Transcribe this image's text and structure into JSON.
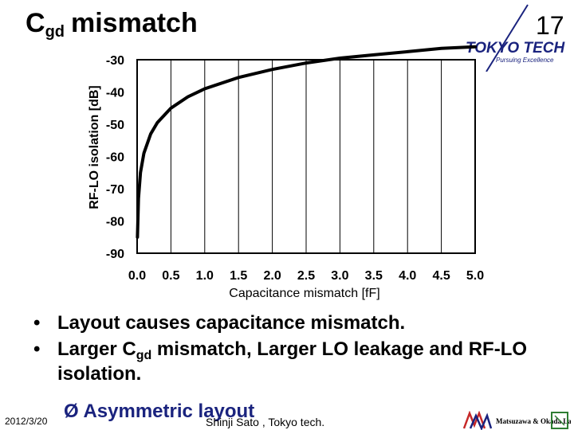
{
  "slide": {
    "title_main": "C",
    "title_sub": "gd",
    "title_rest": "mismatch",
    "page_number": "17",
    "logo_text": "TOKYO TECH",
    "logo_tagline": "Pursuing Excellence"
  },
  "chart_data": {
    "type": "line",
    "xlabel": "Capacitance mismatch [fF]",
    "ylabel": "RF-LO isolation [dB]",
    "xlim": [
      0,
      5
    ],
    "ylim": [
      -90,
      -30
    ],
    "xticks": [
      "0.0",
      "0.5",
      "1.0",
      "1.5",
      "2.0",
      "2.5",
      "3.0",
      "3.5",
      "4.0",
      "4.5",
      "5.0"
    ],
    "yticks": [
      "-30",
      "-40",
      "-50",
      "-60",
      "-70",
      "-80",
      "-90"
    ],
    "grid": "vertical",
    "series": [
      {
        "color": "#000000",
        "x": [
          0.005,
          0.02,
          0.05,
          0.1,
          0.2,
          0.3,
          0.5,
          0.75,
          1.0,
          1.5,
          2.0,
          2.5,
          3.0,
          3.5,
          4.0,
          4.5,
          5.0
        ],
        "y": [
          -85,
          -73,
          -65,
          -59,
          -53,
          -49.5,
          -45,
          -41.5,
          -39,
          -35.5,
          -33,
          -31,
          -29.5,
          -28.5,
          -27.5,
          -26.5,
          -26
        ]
      }
    ]
  },
  "bullets": [
    {
      "marker": "•",
      "segments": [
        "Layout causes capacitance mismatch."
      ]
    },
    {
      "marker": "•",
      "segments": [
        "Larger C",
        "gd",
        " mismatch, Larger LO leakage and RF-LO isolation."
      ]
    }
  ],
  "subpoint": {
    "marker": "Ø",
    "text": "Asymmetric layout"
  },
  "footer": {
    "date": "2012/3/20",
    "author": "Shinji Sato , Tokyo tech.",
    "lab_logo_text": "Matsuzawa & Okada Lab."
  }
}
